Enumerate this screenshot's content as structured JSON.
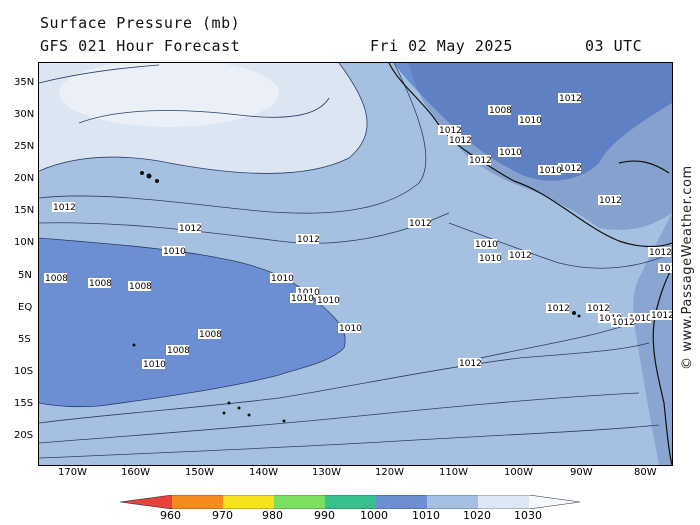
{
  "header": {
    "title": "Surface Pressure (mb)",
    "subtitle": "GFS 021 Hour Forecast",
    "date": "Fri 02 May 2025",
    "time": "03 UTC"
  },
  "credit": "© www.PassageWeather.com",
  "axes": {
    "lat_labels": [
      "35N",
      "30N",
      "25N",
      "20N",
      "15N",
      "10N",
      "5N",
      "EQ",
      "5S",
      "10S",
      "15S",
      "20S"
    ],
    "lon_labels": [
      "170W",
      "160W",
      "150W",
      "140W",
      "130W",
      "120W",
      "110W",
      "100W",
      "90W",
      "80W"
    ]
  },
  "colorbar": {
    "ticks": [
      "960",
      "970",
      "980",
      "990",
      "1000",
      "1010",
      "1020",
      "1030"
    ],
    "colors": [
      "#e8413a",
      "#f58b1e",
      "#f4e21a",
      "#7ae062",
      "#35c08e",
      "#6b8fd2",
      "#a3bfe3",
      "#dde7f4"
    ]
  },
  "map_colors": {
    "low_1000_1010": "#6b8fd2",
    "mid_1010_1020": "#a6c0e2",
    "high_1020_1030": "#dce5f2",
    "land": "#4a68a8"
  },
  "isobar_labels": [
    {
      "text": "1012"
    },
    {
      "text": "1012"
    },
    {
      "text": "1012"
    },
    {
      "text": "1012"
    },
    {
      "text": "1012"
    },
    {
      "text": "1010"
    },
    {
      "text": "1010"
    },
    {
      "text": "1010"
    },
    {
      "text": "1010"
    },
    {
      "text": "1010"
    },
    {
      "text": "1008"
    },
    {
      "text": "1008"
    },
    {
      "text": "1008"
    },
    {
      "text": "1008"
    },
    {
      "text": "1008"
    },
    {
      "text": "1010"
    },
    {
      "text": "1010"
    },
    {
      "text": "1012"
    },
    {
      "text": "1010"
    },
    {
      "text": "1012"
    },
    {
      "text": "1012"
    },
    {
      "text": "1010"
    },
    {
      "text": "1010"
    },
    {
      "text": "1012"
    },
    {
      "text": "1012"
    },
    {
      "text": "1012"
    },
    {
      "text": "1012"
    },
    {
      "text": "1012"
    },
    {
      "text": "1010"
    },
    {
      "text": "1012"
    },
    {
      "text": "1008"
    },
    {
      "text": "1010"
    },
    {
      "text": "1012"
    },
    {
      "text": "1012"
    },
    {
      "text": "1010"
    },
    {
      "text": "1012"
    },
    {
      "text": "1012"
    },
    {
      "text": "1010"
    }
  ]
}
